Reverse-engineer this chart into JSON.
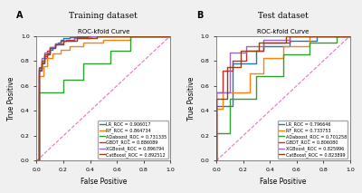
{
  "title_A": "Training dataset",
  "title_B": "Test dataset",
  "subtitle": "ROC-kfold Curve",
  "xlabel": "False Positive",
  "ylabel": "True Positive",
  "panel_A_label": "A",
  "panel_B_label": "B",
  "legend_A": [
    {
      "label": "LR_ROC = 0.906017",
      "color": "#1f77b4"
    },
    {
      "label": "RF_ROC = 0.864734",
      "color": "#ff7f0e"
    },
    {
      "label": "ADaboost_ROC = 0.731335",
      "color": "#2ca02c"
    },
    {
      "label": "GBDT_ROC = 0.886089",
      "color": "#d62728"
    },
    {
      "label": "XGBoost_ROC = 0.896794",
      "color": "#9467bd"
    },
    {
      "label": "CatBoost_ROC = 0.892512",
      "color": "#8b4513"
    }
  ],
  "legend_B": [
    {
      "label": "LR_ROC = 0.796646",
      "color": "#1f77b4"
    },
    {
      "label": "RF_ROC = 0.733753",
      "color": "#ff7f0e"
    },
    {
      "label": "ADaboost_ROC = 0.701258",
      "color": "#2ca02c"
    },
    {
      "label": "GBDT_ROC = 0.806080",
      "color": "#d62728"
    },
    {
      "label": "XGBoost_ROC = 0.825996",
      "color": "#9467bd"
    },
    {
      "label": "CatBoost_ROC = 0.823899",
      "color": "#8b4513"
    }
  ],
  "curves_A": {
    "LR": {
      "x": [
        0,
        0.02,
        0.02,
        0.04,
        0.04,
        0.06,
        0.06,
        0.08,
        0.08,
        0.1,
        0.1,
        0.12,
        0.12,
        0.14,
        0.14,
        0.16,
        0.16,
        0.18,
        0.18,
        0.2,
        0.2,
        0.25,
        0.25,
        0.3,
        0.3,
        1.0
      ],
      "y": [
        0,
        0,
        0.72,
        0.72,
        0.78,
        0.78,
        0.82,
        0.82,
        0.86,
        0.86,
        0.89,
        0.89,
        0.91,
        0.91,
        0.93,
        0.93,
        0.95,
        0.95,
        0.97,
        0.97,
        0.98,
        0.98,
        0.99,
        0.99,
        1.0,
        1.0
      ]
    },
    "RF": {
      "x": [
        0,
        0.02,
        0.02,
        0.05,
        0.05,
        0.08,
        0.08,
        0.12,
        0.12,
        0.18,
        0.18,
        0.25,
        0.25,
        0.35,
        0.35,
        0.5,
        0.5,
        0.7,
        0.7,
        1.0
      ],
      "y": [
        0,
        0,
        0.68,
        0.68,
        0.76,
        0.76,
        0.82,
        0.82,
        0.86,
        0.86,
        0.89,
        0.89,
        0.92,
        0.92,
        0.95,
        0.95,
        0.97,
        0.97,
        1.0,
        1.0
      ]
    },
    "ADaboost": {
      "x": [
        0,
        0.02,
        0.02,
        0.2,
        0.2,
        0.35,
        0.35,
        0.55,
        0.55,
        0.7,
        0.7,
        1.0
      ],
      "y": [
        0,
        0,
        0.55,
        0.55,
        0.65,
        0.65,
        0.78,
        0.78,
        0.88,
        0.88,
        1.0,
        1.0
      ]
    },
    "GBDT": {
      "x": [
        0,
        0.02,
        0.02,
        0.04,
        0.04,
        0.06,
        0.06,
        0.08,
        0.08,
        0.1,
        0.1,
        0.14,
        0.14,
        0.18,
        0.18,
        0.22,
        0.22,
        0.28,
        0.28,
        0.38,
        0.38,
        0.55,
        0.55,
        1.0
      ],
      "y": [
        0,
        0,
        0.73,
        0.73,
        0.79,
        0.79,
        0.84,
        0.84,
        0.88,
        0.88,
        0.91,
        0.91,
        0.94,
        0.94,
        0.96,
        0.96,
        0.97,
        0.97,
        0.99,
        0.99,
        1.0,
        1.0,
        1.0,
        1.0
      ]
    },
    "XGBoost": {
      "x": [
        0,
        0.02,
        0.02,
        0.04,
        0.04,
        0.06,
        0.06,
        0.1,
        0.1,
        0.14,
        0.14,
        0.2,
        0.2,
        0.28,
        0.28,
        0.4,
        0.4,
        0.6,
        0.6,
        1.0
      ],
      "y": [
        0,
        0,
        0.75,
        0.75,
        0.82,
        0.82,
        0.87,
        0.87,
        0.91,
        0.91,
        0.94,
        0.94,
        0.96,
        0.96,
        0.98,
        0.98,
        1.0,
        1.0,
        1.0,
        1.0
      ]
    },
    "CatBoost": {
      "x": [
        0,
        0.02,
        0.02,
        0.04,
        0.04,
        0.06,
        0.06,
        0.1,
        0.1,
        0.14,
        0.14,
        0.2,
        0.2,
        0.3,
        0.3,
        0.45,
        0.45,
        0.62,
        0.62,
        1.0
      ],
      "y": [
        0,
        0,
        0.74,
        0.74,
        0.8,
        0.8,
        0.85,
        0.85,
        0.9,
        0.9,
        0.93,
        0.93,
        0.96,
        0.96,
        0.98,
        0.98,
        1.0,
        1.0,
        1.0,
        1.0
      ]
    }
  },
  "curves_B": {
    "LR": {
      "x": [
        0,
        0.0,
        0.12,
        0.12,
        0.3,
        0.3,
        0.35,
        0.35,
        0.55,
        0.55,
        0.75,
        0.75,
        1.0
      ],
      "y": [
        0,
        0.44,
        0.44,
        0.78,
        0.78,
        0.88,
        0.88,
        0.92,
        0.92,
        0.96,
        0.96,
        1.0,
        1.0
      ]
    },
    "RF": {
      "x": [
        0,
        0.0,
        0.05,
        0.05,
        0.25,
        0.25,
        0.35,
        0.35,
        0.5,
        0.5,
        0.7,
        0.7,
        1.0
      ],
      "y": [
        0,
        0.42,
        0.42,
        0.55,
        0.55,
        0.7,
        0.7,
        0.82,
        0.82,
        0.92,
        0.92,
        1.0,
        1.0
      ]
    },
    "ADaboost": {
      "x": [
        0,
        0.0,
        0.1,
        0.1,
        0.3,
        0.3,
        0.5,
        0.5,
        0.7,
        0.7,
        0.9,
        0.9,
        1.0
      ],
      "y": [
        0,
        0.22,
        0.22,
        0.5,
        0.5,
        0.68,
        0.68,
        0.85,
        0.85,
        0.95,
        0.95,
        1.0,
        1.0
      ]
    },
    "GBDT": {
      "x": [
        0,
        0.0,
        0.05,
        0.05,
        0.12,
        0.12,
        0.22,
        0.22,
        0.35,
        0.35,
        0.55,
        0.55,
        0.75,
        0.75,
        1.0
      ],
      "y": [
        0,
        0.55,
        0.55,
        0.72,
        0.72,
        0.8,
        0.8,
        0.88,
        0.88,
        0.95,
        0.95,
        1.0,
        1.0,
        1.0,
        1.0
      ]
    },
    "XGBoost": {
      "x": [
        0,
        0.0,
        0.1,
        0.1,
        0.22,
        0.22,
        0.35,
        0.35,
        0.55,
        0.55,
        1.0
      ],
      "y": [
        0,
        0.55,
        0.55,
        0.87,
        0.87,
        0.92,
        0.92,
        0.97,
        0.97,
        1.0,
        1.0
      ]
    },
    "CatBoost": {
      "x": [
        0,
        0.0,
        0.08,
        0.08,
        0.18,
        0.18,
        0.32,
        0.32,
        0.52,
        0.52,
        0.72,
        0.72,
        1.0
      ],
      "y": [
        0,
        0.5,
        0.5,
        0.75,
        0.75,
        0.88,
        0.88,
        0.95,
        0.95,
        1.0,
        1.0,
        1.0,
        1.0
      ]
    }
  },
  "curve_keys": [
    "LR",
    "RF",
    "ADaboost",
    "GBDT",
    "XGBoost",
    "CatBoost"
  ],
  "colors": [
    "#1f77b4",
    "#ff7f0e",
    "#2ca02c",
    "#d62728",
    "#9467bd",
    "#8b4513"
  ],
  "diagonal_color": "#e377c2",
  "bg_color": "#f0f0f0",
  "lw": 1.0
}
